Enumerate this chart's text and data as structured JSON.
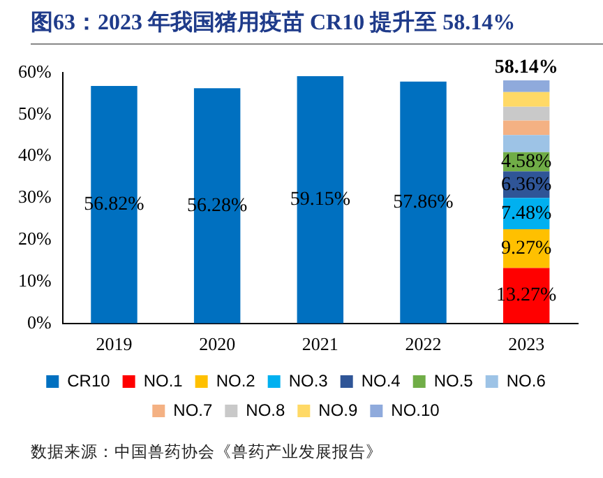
{
  "chart_data": {
    "type": "bar",
    "title": "图63：2023 年我国猪用疫苗 CR10 提升至 58.14%",
    "stacked": true,
    "categories": [
      "2019",
      "2020",
      "2021",
      "2022",
      "2023"
    ],
    "series": [
      {
        "name": "CR10",
        "color": "#0070c0",
        "values": [
          56.82,
          56.28,
          59.15,
          57.86,
          null
        ],
        "value_labels": [
          "56.82%",
          "56.28%",
          "59.15%",
          "57.86%",
          null
        ]
      },
      {
        "name": "NO.1",
        "color": "#ff0000",
        "values": [
          null,
          null,
          null,
          null,
          13.27
        ],
        "value_labels": [
          null,
          null,
          null,
          null,
          "13.27%"
        ]
      },
      {
        "name": "NO.2",
        "color": "#ffc000",
        "values": [
          null,
          null,
          null,
          null,
          9.27
        ],
        "value_labels": [
          null,
          null,
          null,
          null,
          "9.27%"
        ]
      },
      {
        "name": "NO.3",
        "color": "#00b0f0",
        "values": [
          null,
          null,
          null,
          null,
          7.48
        ],
        "value_labels": [
          null,
          null,
          null,
          null,
          "7.48%"
        ]
      },
      {
        "name": "NO.4",
        "color": "#2f5597",
        "values": [
          null,
          null,
          null,
          null,
          6.36
        ],
        "value_labels": [
          null,
          null,
          null,
          null,
          "6.36%"
        ]
      },
      {
        "name": "NO.5",
        "color": "#70ad47",
        "values": [
          null,
          null,
          null,
          null,
          4.58
        ],
        "value_labels": [
          null,
          null,
          null,
          null,
          "4.58%"
        ]
      },
      {
        "name": "NO.6",
        "color": "#9dc3e6",
        "values": [
          null,
          null,
          null,
          null,
          4.1
        ]
      },
      {
        "name": "NO.7",
        "color": "#f4b183",
        "values": [
          null,
          null,
          null,
          null,
          3.5
        ]
      },
      {
        "name": "NO.8",
        "color": "#c9c9c9",
        "values": [
          null,
          null,
          null,
          null,
          3.3
        ]
      },
      {
        "name": "NO.9",
        "color": "#ffd966",
        "values": [
          null,
          null,
          null,
          null,
          3.5
        ]
      },
      {
        "name": "NO.10",
        "color": "#8faadc",
        "values": [
          null,
          null,
          null,
          null,
          2.8
        ]
      }
    ],
    "totals": [
      null,
      null,
      null,
      null,
      "58.14%"
    ],
    "ylim": [
      0,
      60
    ],
    "yticks": [
      {
        "value": 0,
        "label": "0%"
      },
      {
        "value": 10,
        "label": "10%"
      },
      {
        "value": 20,
        "label": "20%"
      },
      {
        "value": 30,
        "label": "30%"
      },
      {
        "value": 40,
        "label": "40%"
      },
      {
        "value": 50,
        "label": "50%"
      },
      {
        "value": 60,
        "label": "60%"
      }
    ],
    "grid": false,
    "legend": "bottom",
    "annotations": [
      "数据来源：中国兽药协会《兽药产业发展报告》"
    ]
  }
}
